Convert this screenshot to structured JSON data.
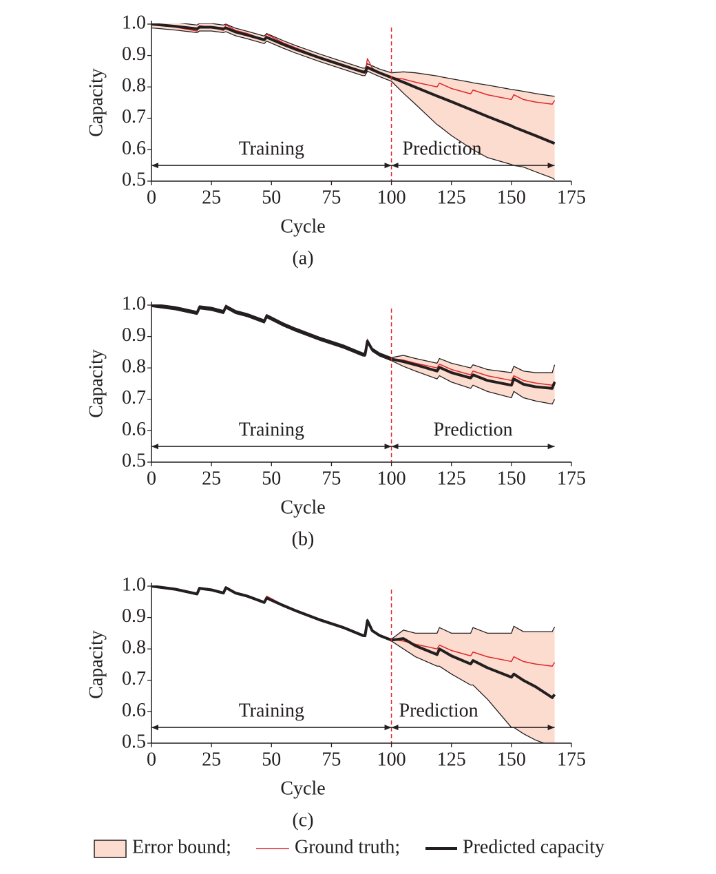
{
  "chart_data": [
    {
      "type": "line",
      "caption": "(a)",
      "xlabel": "Cycle",
      "ylabel": "Capacity",
      "xlim": [
        0,
        175
      ],
      "ylim": [
        0.5,
        1.0
      ],
      "xticks": [
        0,
        25,
        50,
        75,
        100,
        125,
        150,
        175
      ],
      "yticks": [
        0.5,
        0.6,
        0.7,
        0.8,
        0.9,
        {
          "value": 1.0,
          "label": "1.0"
        }
      ],
      "vline": 100,
      "annotations": [
        "Training",
        "Prediction"
      ],
      "x": [
        0,
        10,
        19,
        20,
        25,
        30,
        31,
        35,
        40,
        47,
        48,
        55,
        60,
        70,
        80,
        88,
        89,
        90,
        92,
        95,
        100,
        105,
        110,
        119,
        120,
        125,
        133,
        134,
        140,
        150,
        151,
        155,
        160,
        167,
        168
      ],
      "band": {
        "color": "#fcdccf",
        "upper": [
          1.012,
          1.005,
          0.997,
          1.002,
          1.002,
          0.997,
          1.0,
          0.987,
          0.977,
          0.962,
          0.97,
          0.947,
          0.932,
          0.905,
          0.88,
          0.86,
          0.86,
          0.874,
          0.867,
          0.857,
          0.845,
          0.848,
          0.845,
          0.835,
          0.833,
          0.826,
          0.815,
          0.813,
          0.806,
          0.792,
          0.791,
          0.786,
          0.779,
          0.771,
          0.77
        ],
        "lower": [
          0.988,
          0.981,
          0.973,
          0.978,
          0.978,
          0.973,
          0.976,
          0.963,
          0.953,
          0.938,
          0.946,
          0.923,
          0.908,
          0.881,
          0.856,
          0.836,
          0.836,
          0.85,
          0.843,
          0.833,
          0.818,
          0.78,
          0.745,
          0.68,
          0.675,
          0.645,
          0.605,
          0.6,
          0.575,
          0.553,
          0.55,
          0.545,
          0.53,
          0.51,
          0.505
        ]
      },
      "series": [
        {
          "color": "#e0262b",
          "values": [
            1.0,
            0.99,
            0.978,
            0.995,
            0.99,
            0.98,
            0.998,
            0.98,
            0.97,
            0.95,
            0.968,
            0.94,
            0.925,
            0.895,
            0.87,
            0.845,
            0.843,
            0.89,
            0.86,
            0.845,
            0.83,
            0.825,
            0.815,
            0.8,
            0.812,
            0.795,
            0.778,
            0.79,
            0.775,
            0.76,
            0.775,
            0.76,
            0.752,
            0.745,
            0.757
          ]
        },
        {
          "color": "#231f20",
          "values": [
            1.0,
            0.993,
            0.985,
            0.99,
            0.99,
            0.985,
            0.988,
            0.975,
            0.965,
            0.95,
            0.958,
            0.935,
            0.92,
            0.893,
            0.868,
            0.848,
            0.848,
            0.862,
            0.855,
            0.845,
            0.83,
            0.815,
            0.799,
            0.771,
            0.768,
            0.753,
            0.728,
            0.725,
            0.706,
            0.676,
            0.672,
            0.66,
            0.645,
            0.623,
            0.62
          ]
        }
      ]
    },
    {
      "type": "line",
      "caption": "(b)",
      "xlabel": "Cycle",
      "ylabel": "Capacity",
      "xlim": [
        0,
        175
      ],
      "ylim": [
        0.5,
        1.0
      ],
      "xticks": [
        0,
        25,
        50,
        75,
        100,
        125,
        150,
        175
      ],
      "yticks": [
        0.5,
        0.6,
        0.7,
        0.8,
        0.9,
        {
          "value": 1.0,
          "label": "1.0"
        }
      ],
      "vline": 100,
      "annotations": [
        "Training",
        "Prediction"
      ],
      "x": [
        0,
        10,
        19,
        20,
        25,
        30,
        31,
        35,
        40,
        47,
        48,
        55,
        60,
        70,
        80,
        88,
        89,
        90,
        92,
        95,
        100,
        105,
        110,
        119,
        120,
        125,
        133,
        134,
        140,
        150,
        151,
        155,
        160,
        167,
        168
      ],
      "band": {
        "color": "#fcdccf",
        "upper": [
          1.005,
          0.995,
          0.98,
          0.998,
          0.993,
          0.983,
          1.0,
          0.983,
          0.973,
          0.953,
          0.97,
          0.943,
          0.927,
          0.898,
          0.873,
          0.848,
          0.847,
          0.89,
          0.863,
          0.848,
          0.833,
          0.84,
          0.83,
          0.815,
          0.83,
          0.815,
          0.8,
          0.81,
          0.795,
          0.785,
          0.805,
          0.79,
          0.785,
          0.785,
          0.81
        ],
        "lower": [
          0.995,
          0.985,
          0.97,
          0.988,
          0.983,
          0.973,
          0.99,
          0.973,
          0.963,
          0.943,
          0.96,
          0.933,
          0.917,
          0.888,
          0.863,
          0.838,
          0.837,
          0.88,
          0.853,
          0.838,
          0.823,
          0.805,
          0.79,
          0.765,
          0.775,
          0.755,
          0.735,
          0.745,
          0.725,
          0.705,
          0.725,
          0.705,
          0.695,
          0.685,
          0.7
        ]
      },
      "series": [
        {
          "color": "#e0262b",
          "values": [
            1.0,
            0.99,
            0.978,
            0.995,
            0.99,
            0.98,
            0.998,
            0.98,
            0.97,
            0.95,
            0.968,
            0.94,
            0.925,
            0.895,
            0.87,
            0.845,
            0.843,
            0.89,
            0.86,
            0.845,
            0.83,
            0.825,
            0.815,
            0.8,
            0.812,
            0.795,
            0.778,
            0.79,
            0.775,
            0.76,
            0.775,
            0.76,
            0.752,
            0.745,
            0.757
          ]
        },
        {
          "color": "#231f20",
          "values": [
            1.0,
            0.99,
            0.975,
            0.993,
            0.988,
            0.978,
            0.995,
            0.978,
            0.968,
            0.948,
            0.965,
            0.938,
            0.922,
            0.893,
            0.868,
            0.843,
            0.842,
            0.885,
            0.858,
            0.843,
            0.828,
            0.82,
            0.81,
            0.79,
            0.802,
            0.785,
            0.768,
            0.778,
            0.76,
            0.745,
            0.765,
            0.748,
            0.74,
            0.735,
            0.755
          ]
        }
      ]
    },
    {
      "type": "line",
      "caption": "(c)",
      "xlabel": "Cycle",
      "ylabel": "Capacity",
      "xlim": [
        0,
        175
      ],
      "ylim": [
        0.5,
        1.0
      ],
      "xticks": [
        0,
        25,
        50,
        75,
        100,
        125,
        150,
        175
      ],
      "yticks": [
        0.5,
        0.6,
        0.7,
        0.8,
        0.9,
        {
          "value": 1.0,
          "label": "1.0"
        }
      ],
      "vline": 100,
      "annotations": [
        "Training",
        "Prediction"
      ],
      "x": [
        0,
        10,
        19,
        20,
        25,
        30,
        31,
        35,
        40,
        47,
        48,
        55,
        60,
        70,
        80,
        88,
        89,
        90,
        92,
        95,
        100,
        105,
        110,
        119,
        120,
        125,
        133,
        134,
        140,
        150,
        151,
        155,
        160,
        167,
        168
      ],
      "band": {
        "color": "#fcdccf",
        "upper": [
          1.003,
          0.993,
          0.978,
          0.996,
          0.991,
          0.981,
          0.998,
          0.981,
          0.971,
          0.951,
          0.965,
          0.941,
          0.925,
          0.896,
          0.871,
          0.846,
          0.845,
          0.893,
          0.861,
          0.846,
          0.831,
          0.86,
          0.85,
          0.85,
          0.868,
          0.85,
          0.85,
          0.868,
          0.85,
          0.85,
          0.872,
          0.855,
          0.855,
          0.855,
          0.87
        ],
        "lower": [
          0.997,
          0.987,
          0.972,
          0.99,
          0.985,
          0.975,
          0.992,
          0.975,
          0.965,
          0.945,
          0.959,
          0.935,
          0.919,
          0.89,
          0.865,
          0.84,
          0.839,
          0.887,
          0.855,
          0.84,
          0.825,
          0.8,
          0.775,
          0.745,
          0.745,
          0.72,
          0.685,
          0.685,
          0.64,
          0.55,
          0.55,
          0.53,
          0.51,
          0.49,
          0.48
        ]
      },
      "series": [
        {
          "color": "#e0262b",
          "values": [
            1.0,
            0.99,
            0.978,
            0.995,
            0.99,
            0.98,
            0.998,
            0.98,
            0.97,
            0.95,
            0.968,
            0.94,
            0.925,
            0.895,
            0.87,
            0.845,
            0.843,
            0.89,
            0.86,
            0.845,
            0.83,
            0.825,
            0.815,
            0.8,
            0.812,
            0.795,
            0.778,
            0.79,
            0.775,
            0.76,
            0.775,
            0.76,
            0.752,
            0.745,
            0.757
          ]
        },
        {
          "color": "#231f20",
          "values": [
            1.0,
            0.99,
            0.975,
            0.993,
            0.988,
            0.978,
            0.995,
            0.978,
            0.968,
            0.948,
            0.962,
            0.938,
            0.922,
            0.893,
            0.868,
            0.843,
            0.842,
            0.89,
            0.858,
            0.843,
            0.828,
            0.833,
            0.81,
            0.782,
            0.8,
            0.778,
            0.752,
            0.763,
            0.74,
            0.71,
            0.72,
            0.7,
            0.68,
            0.645,
            0.655
          ]
        }
      ]
    }
  ],
  "legend": [
    {
      "label": "Error bound;",
      "color": "#fcdccf"
    },
    {
      "label": "Ground truth;",
      "color": "#e0262b"
    },
    {
      "label": "Predicted capacity",
      "color": "#231f20"
    }
  ]
}
